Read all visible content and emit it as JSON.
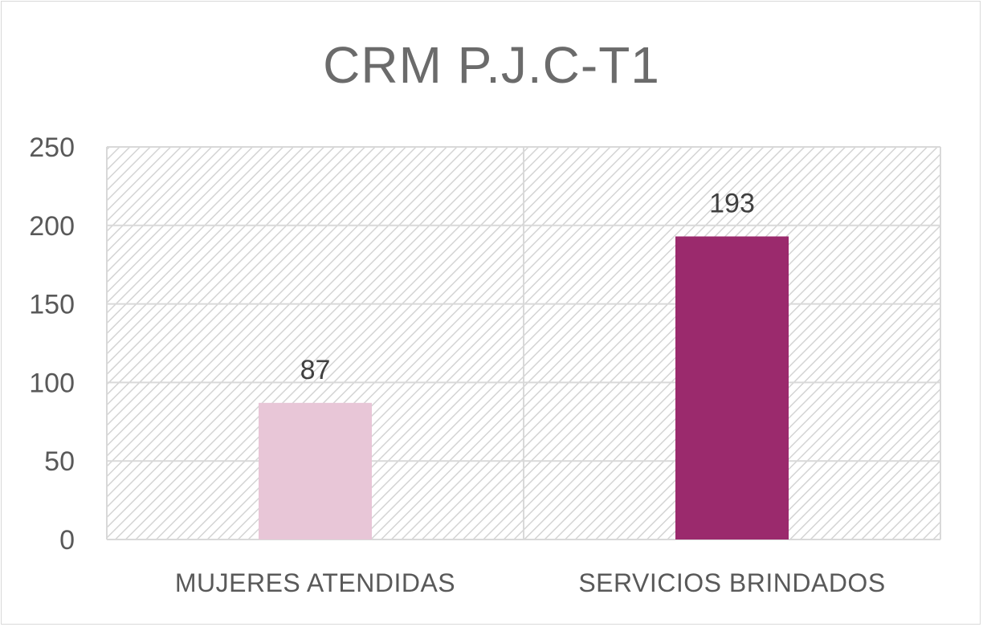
{
  "chart_data": {
    "type": "bar",
    "title": "CRM P.J.C-T1",
    "categories": [
      "MUJERES ATENDIDAS",
      "SERVICIOS BRINDADOS"
    ],
    "values": [
      87,
      193
    ],
    "data_labels": [
      "87",
      "193"
    ],
    "bar_colors": [
      "#e8c6d7",
      "#9b2a6d"
    ],
    "ylim": [
      0,
      250
    ],
    "yticks": [
      0,
      50,
      100,
      150,
      200,
      250
    ],
    "xlabel": "",
    "ylabel": "",
    "grid": true,
    "legend": "none"
  }
}
